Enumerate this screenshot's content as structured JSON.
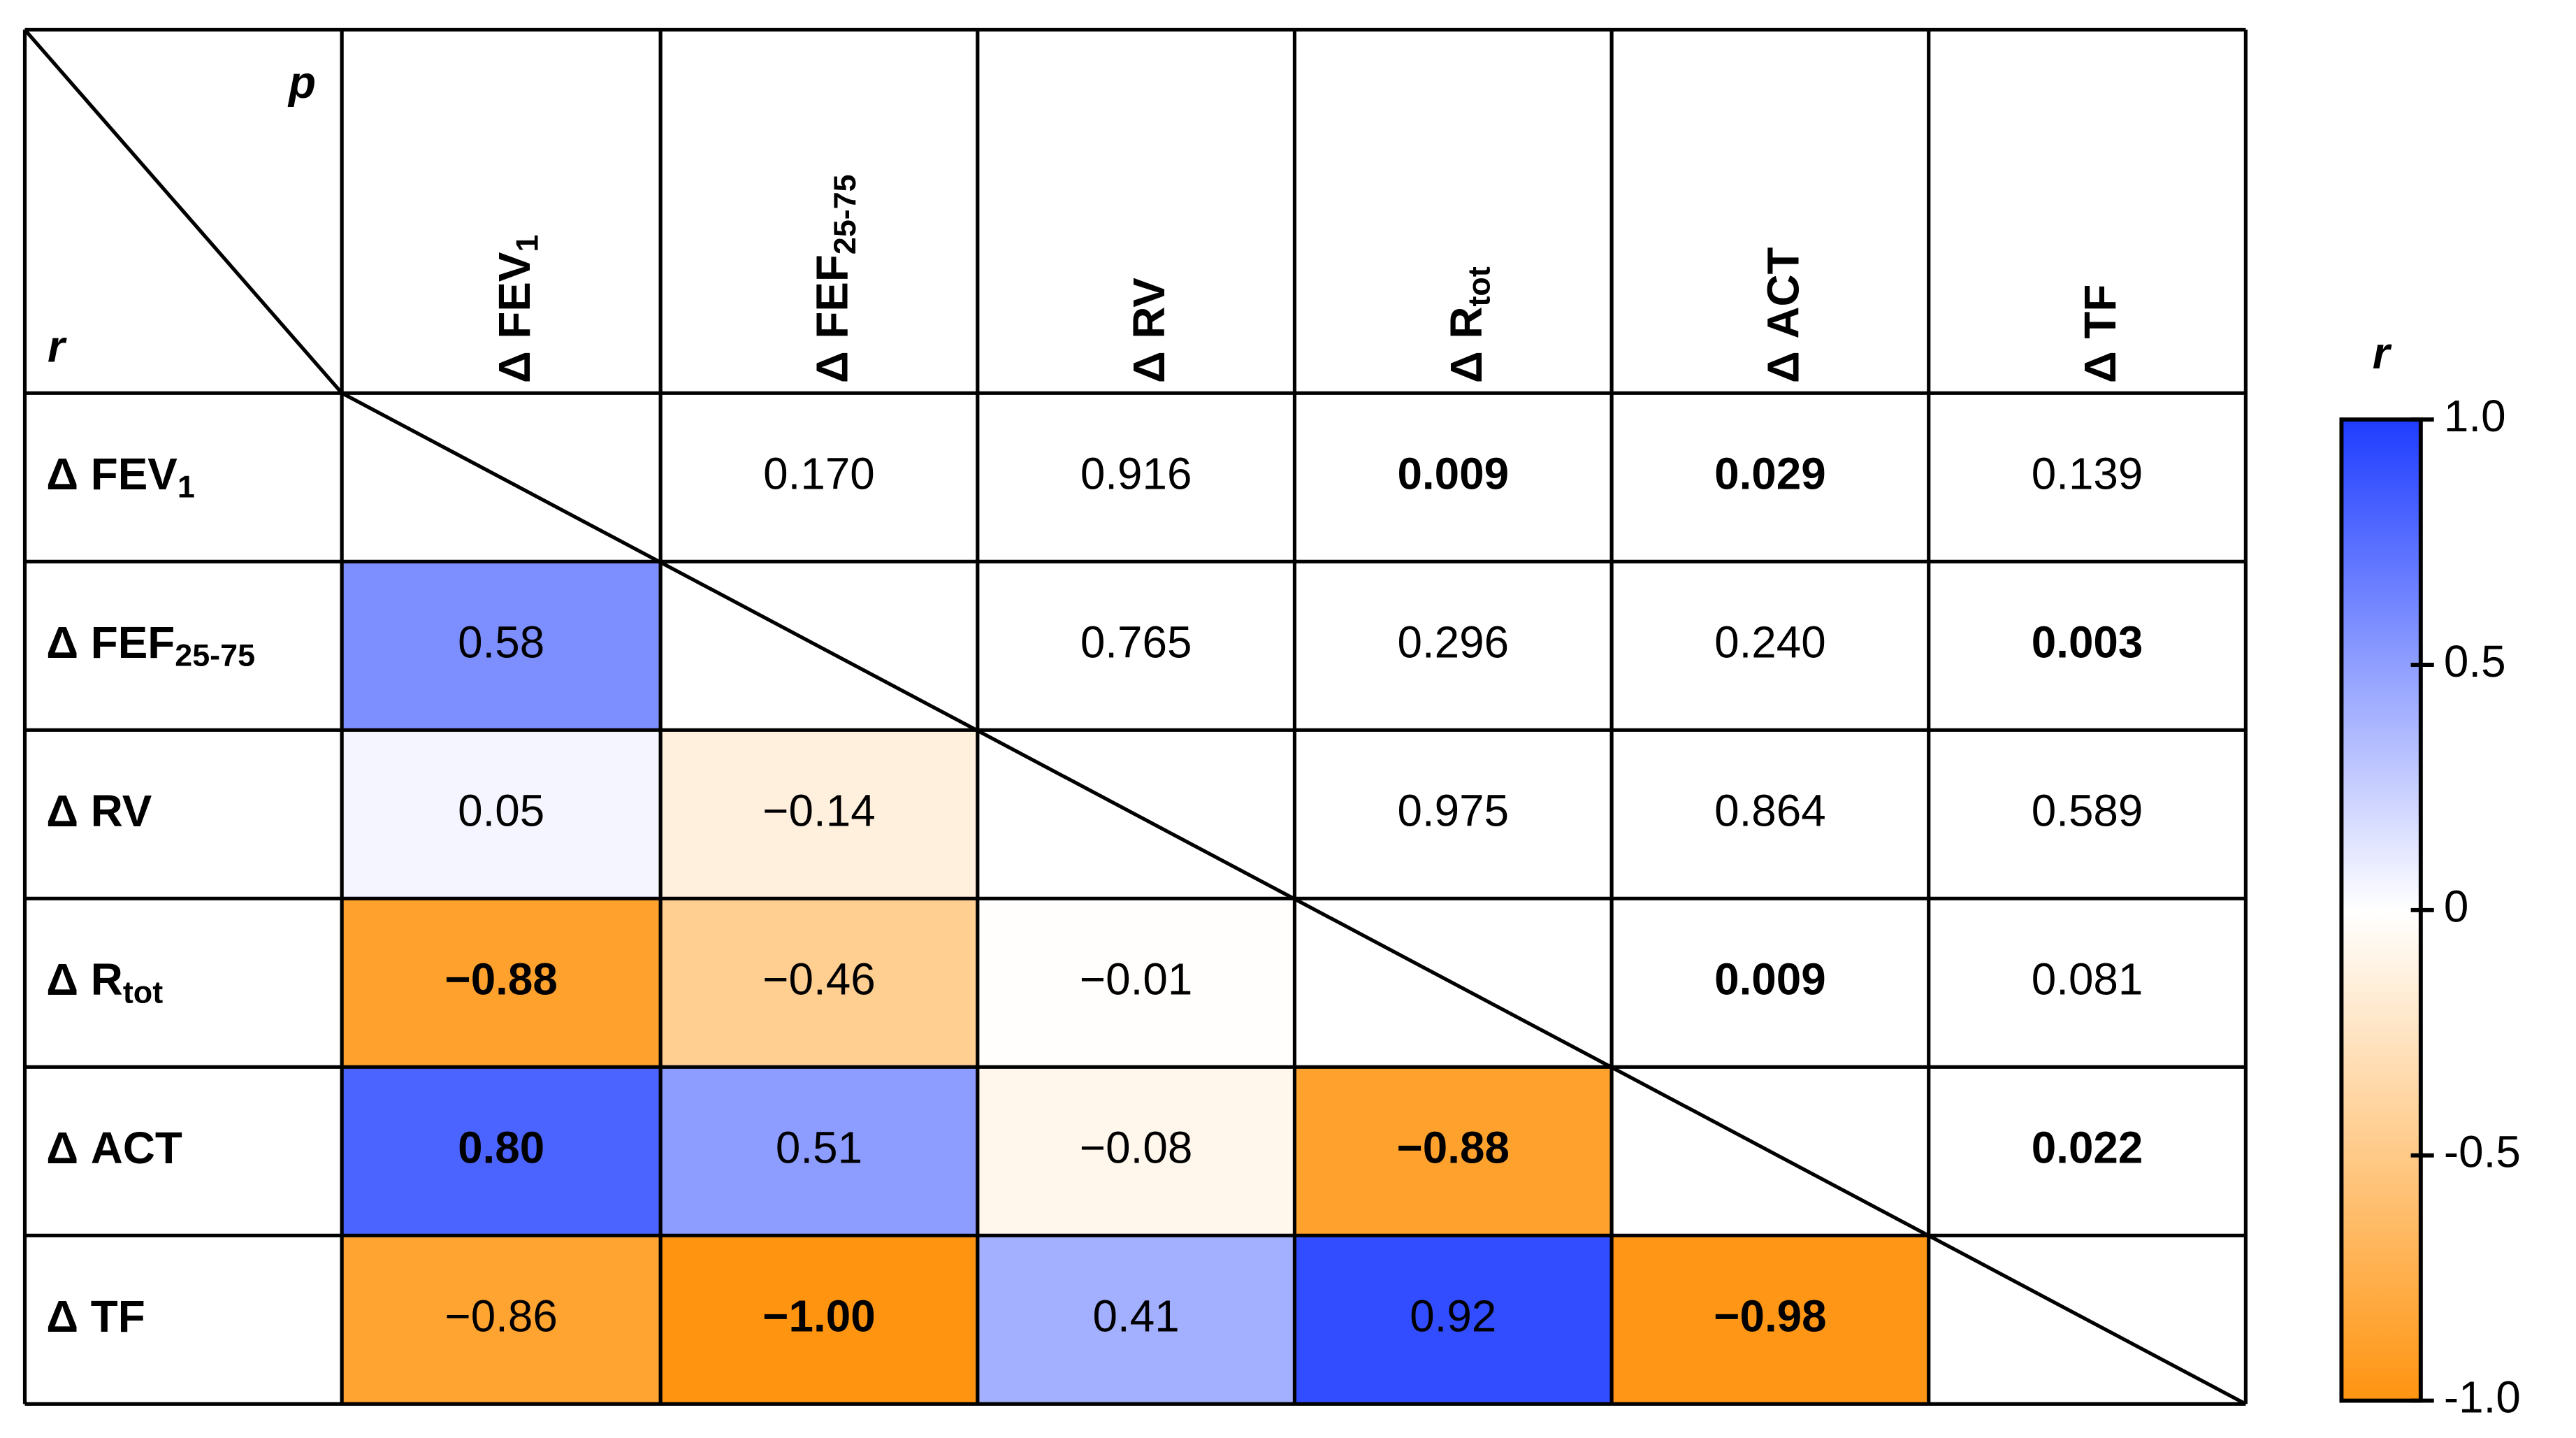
{
  "chart_data": {
    "type": "heatmap",
    "corner_top": "p",
    "corner_bottom": "r",
    "columns": [
      {
        "text": "Δ FEV",
        "sub": "1"
      },
      {
        "text": "Δ FEF",
        "sub": "25-75"
      },
      {
        "text": "Δ RV"
      },
      {
        "text": "Δ R",
        "sub": "tot"
      },
      {
        "text": "Δ ACT"
      },
      {
        "text": "Δ TF"
      }
    ],
    "rows": [
      {
        "text": "Δ FEV",
        "sub": "1"
      },
      {
        "text": "Δ FEF",
        "sub": "25-75"
      },
      {
        "text": "Δ RV"
      },
      {
        "text": "Δ R",
        "sub": "tot"
      },
      {
        "text": "Δ ACT"
      },
      {
        "text": "Δ TF"
      }
    ],
    "values": [
      [
        null,
        null,
        null,
        null,
        null,
        null
      ],
      [
        0.58,
        null,
        null,
        null,
        null,
        null
      ],
      [
        0.05,
        -0.14,
        null,
        null,
        null,
        null
      ],
      [
        -0.88,
        -0.46,
        -0.01,
        null,
        null,
        null
      ],
      [
        0.8,
        0.51,
        -0.08,
        -0.88,
        null,
        null
      ],
      [
        -0.86,
        -1.0,
        0.41,
        0.92,
        -0.98,
        null
      ]
    ],
    "value_labels": [
      [
        null,
        null,
        null,
        null,
        null,
        null
      ],
      [
        "0.58",
        null,
        null,
        null,
        null,
        null
      ],
      [
        "0.05",
        "−0.14",
        null,
        null,
        null,
        null
      ],
      [
        "−0.88",
        "−0.46",
        "−0.01",
        null,
        null,
        null
      ],
      [
        "0.80",
        "0.51",
        "−0.08",
        "−0.88",
        null,
        null
      ],
      [
        "−0.86",
        "−1.00",
        "0.41",
        "0.92",
        "−0.98",
        null
      ]
    ],
    "p_values": [
      [
        null,
        0.17,
        0.916,
        0.009,
        0.029,
        0.139
      ],
      [
        null,
        null,
        0.765,
        0.296,
        0.24,
        0.003
      ],
      [
        null,
        null,
        null,
        0.975,
        0.864,
        0.589
      ],
      [
        null,
        null,
        null,
        null,
        0.009,
        0.081
      ],
      [
        null,
        null,
        null,
        null,
        null,
        0.022
      ],
      [
        null,
        null,
        null,
        null,
        null,
        null
      ]
    ],
    "p_value_labels": [
      [
        null,
        "0.170",
        "0.916",
        "0.009",
        "0.029",
        "0.139"
      ],
      [
        null,
        null,
        "0.765",
        "0.296",
        "0.240",
        "0.003"
      ],
      [
        null,
        null,
        null,
        "0.975",
        "0.864",
        "0.589"
      ],
      [
        null,
        null,
        null,
        null,
        "0.009",
        "0.081"
      ],
      [
        null,
        null,
        null,
        null,
        null,
        "0.022"
      ],
      [
        null,
        null,
        null,
        null,
        null,
        null
      ]
    ],
    "bold": [
      [
        false,
        false,
        false,
        true,
        true,
        false
      ],
      [
        false,
        false,
        false,
        false,
        false,
        true
      ],
      [
        false,
        false,
        false,
        false,
        false,
        false
      ],
      [
        true,
        false,
        false,
        false,
        true,
        false
      ],
      [
        true,
        false,
        false,
        true,
        false,
        true
      ],
      [
        false,
        true,
        false,
        false,
        true,
        false
      ]
    ],
    "colorscale": [
      [
        -1,
        "#ff9410"
      ],
      [
        0,
        "#ffffff"
      ],
      [
        1,
        "#1f3dff"
      ]
    ],
    "colorbar_title": "r",
    "clim": [
      -1,
      1
    ],
    "cticks": [
      {
        "value": 1,
        "label": "1.0"
      },
      0.5,
      0,
      -0.5,
      {
        "value": -1,
        "label": "-1.0"
      }
    ]
  }
}
